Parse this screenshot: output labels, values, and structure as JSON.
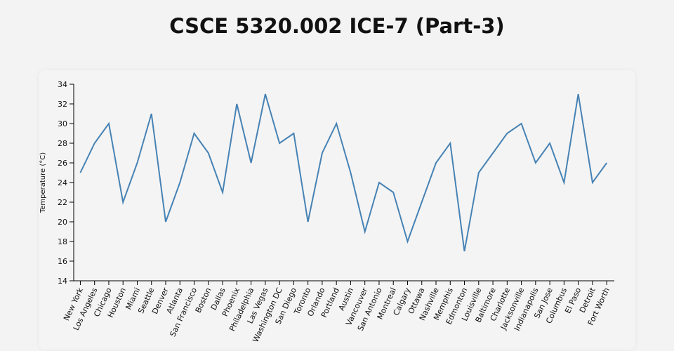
{
  "page": {
    "title": "CSCE 5320.002 ICE-7 (Part-3)"
  },
  "chart_data": {
    "type": "line",
    "title": "CSCE 5320.002 ICE-7 (Part-3)",
    "xlabel": "",
    "ylabel": "Temperature (°C)",
    "ylim": [
      14,
      34
    ],
    "yticks": [
      14,
      16,
      18,
      20,
      22,
      24,
      26,
      28,
      30,
      32,
      34
    ],
    "line_color": "#4682b4",
    "categories": [
      "New York",
      "Los Angeles",
      "Chicago",
      "Houston",
      "Miami",
      "Seattle",
      "Denver",
      "Atlanta",
      "San Francisco",
      "Boston",
      "Dallas",
      "Phoenix",
      "Philadelphia",
      "Las Vegas",
      "Washington DC",
      "San Diego",
      "Toronto",
      "Orlando",
      "Portland",
      "Austin",
      "Vancouver",
      "San Antonio",
      "Montreal",
      "Calgary",
      "Ottawa",
      "Nashville",
      "Memphis",
      "Edmonton",
      "Louisville",
      "Baltimore",
      "Charlotte",
      "Jacksonville",
      "Indianapolis",
      "San Jose",
      "Columbus",
      "El Paso",
      "Detroit",
      "Fort Worth"
    ],
    "values": [
      25,
      28,
      30,
      22,
      26,
      31,
      20,
      24,
      29,
      27,
      23,
      32,
      26,
      33,
      28,
      29,
      20,
      27,
      30,
      25,
      19,
      24,
      23,
      18,
      22,
      26,
      28,
      17,
      25,
      27,
      29,
      30,
      26,
      28,
      24,
      33,
      24,
      26
    ],
    "grid": false,
    "legend": "none"
  }
}
